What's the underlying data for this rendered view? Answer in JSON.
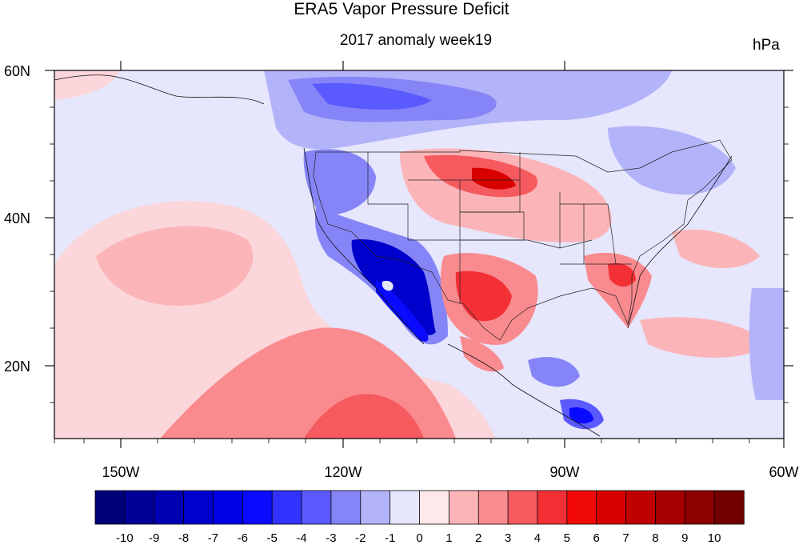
{
  "title": "ERA5 Vapor Pressure Deficit",
  "subtitle": "2017 anomaly week19",
  "units": "hPa",
  "axes": {
    "lon_ticks": [
      "150W",
      "120W",
      "90W",
      "60W"
    ],
    "lat_ticks": [
      "60N",
      "40N",
      "20N"
    ]
  },
  "colorbar": {
    "labels": [
      "-10",
      "-9",
      "-8",
      "-7",
      "-6",
      "-5",
      "-4",
      "-3",
      "-2",
      "-1",
      "0",
      "1",
      "2",
      "3",
      "4",
      "5",
      "6",
      "7",
      "8",
      "9",
      "10"
    ],
    "colors": [
      "#00007a",
      "#000099",
      "#0000b3",
      "#0000cc",
      "#0000e6",
      "#0a0aff",
      "#3333ff",
      "#5a5aff",
      "#8585f7",
      "#b3b3fa",
      "#e6e6fc",
      "#fde8ea",
      "#fbb5b8",
      "#f98a8e",
      "#f55a5f",
      "#f23036",
      "#f20a0a",
      "#d90000",
      "#bf0000",
      "#a60000",
      "#8c0000",
      "#730000"
    ]
  },
  "map": {
    "background_color": "#e6e6fc",
    "anomaly_regions": [
      {
        "label": "pacific-subtropical-warm",
        "color": "#fbd6da"
      },
      {
        "label": "pacific-warm-core",
        "color": "#f8a3a8"
      },
      {
        "label": "southwest-dry-deficit",
        "color": "#0000cc"
      },
      {
        "label": "canada-wet-band",
        "color": "#8585f7"
      },
      {
        "label": "northern-plains-warm",
        "color": "#f55a5f"
      },
      {
        "label": "texas-warm",
        "color": "#f23036"
      },
      {
        "label": "southeast-warm",
        "color": "#f23036"
      },
      {
        "label": "caribbean-cool",
        "color": "#5a5aff"
      }
    ]
  }
}
